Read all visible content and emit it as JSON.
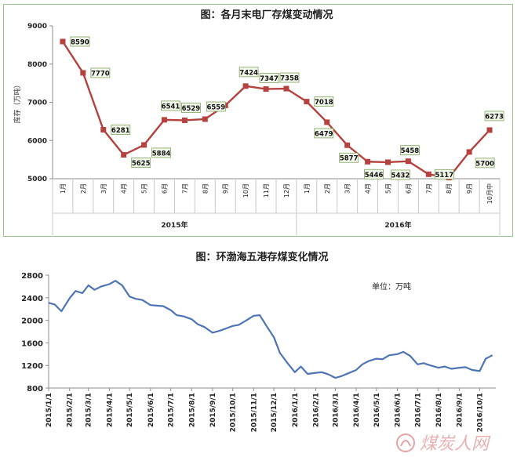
{
  "chart_data": [
    {
      "type": "line",
      "title": "图：各月末电厂存煤变动情况",
      "ylabel": "库存（万吨）",
      "ylim": [
        5000,
        9000
      ],
      "yticks": [
        5000,
        6000,
        7000,
        8000,
        9000
      ],
      "grid": false,
      "categories": [
        "1月",
        "2月",
        "3月",
        "4月",
        "5月",
        "6月",
        "7月",
        "8月",
        "9月",
        "10月",
        "11月",
        "12月",
        "1月",
        "2月",
        "3月",
        "4月",
        "5月",
        "6月",
        "7月",
        "8月",
        "9月",
        "10月中"
      ],
      "groups": [
        {
          "label": "2015年",
          "count": 12
        },
        {
          "label": "2016年",
          "count": 10
        }
      ],
      "series": [
        {
          "values": [
            8590,
            7770,
            6281,
            5625,
            5884,
            6541,
            6529,
            6559,
            6919,
            7424,
            7347,
            7358,
            7018,
            6479,
            5877,
            5446,
            5432,
            5458,
            5117,
            5030,
            5700,
            6273
          ],
          "labels": [
            "8590",
            "7770",
            "6281",
            "5625",
            "5884",
            "6541",
            "6529",
            "6559",
            "",
            "7424",
            "7347",
            "7358",
            "7018",
            "6479",
            "5877",
            "5446",
            "5432",
            "5458",
            "5117",
            "",
            "5700",
            "6273"
          ],
          "color": "#b5423f"
        }
      ]
    },
    {
      "type": "line",
      "title": "图：环渤海五港存煤变化情况",
      "annotation": "单位：万吨",
      "ylim": [
        800,
        2800
      ],
      "yticks": [
        800,
        1200,
        1600,
        2000,
        2400,
        2800
      ],
      "grid": false,
      "xticks": [
        "2015/1/1",
        "2015/2/1",
        "2015/3/1",
        "2015/4/1",
        "2015/5/1",
        "2015/6/1",
        "2015/7/1",
        "2015/8/1",
        "2015/9/1",
        "2015/10/1",
        "2015/11/1",
        "2015/12/1",
        "2016/1/1",
        "2016/2/1",
        "2016/3/1",
        "2016/4/1",
        "2016/5/1",
        "2016/6/1",
        "2016/7/1",
        "2016/8/1",
        "2016/9/1",
        "2016/10/1"
      ],
      "series": [
        {
          "color": "#4f74b3",
          "x": [
            "2015/1/1",
            "2015/1/10",
            "2015/1/20",
            "2015/2/1",
            "2015/2/10",
            "2015/2/20",
            "2015/3/1",
            "2015/3/10",
            "2015/3/20",
            "2015/4/1",
            "2015/4/10",
            "2015/4/20",
            "2015/5/1",
            "2015/5/10",
            "2015/5/20",
            "2015/6/1",
            "2015/6/10",
            "2015/6/20",
            "2015/7/1",
            "2015/7/10",
            "2015/7/20",
            "2015/8/1",
            "2015/8/10",
            "2015/8/20",
            "2015/9/1",
            "2015/9/10",
            "2015/9/20",
            "2015/10/1",
            "2015/10/10",
            "2015/10/20",
            "2015/11/1",
            "2015/11/10",
            "2015/11/20",
            "2015/12/1",
            "2015/12/10",
            "2015/12/20",
            "2016/1/1",
            "2016/1/10",
            "2016/1/20",
            "2016/2/1",
            "2016/2/10",
            "2016/2/20",
            "2016/3/1",
            "2016/3/10",
            "2016/3/20",
            "2016/4/1",
            "2016/4/10",
            "2016/4/20",
            "2016/5/1",
            "2016/5/10",
            "2016/5/20",
            "2016/6/1",
            "2016/6/10",
            "2016/6/20",
            "2016/7/1",
            "2016/7/10",
            "2016/7/20",
            "2016/8/1",
            "2016/8/10",
            "2016/8/20",
            "2016/9/1",
            "2016/9/10",
            "2016/9/20",
            "2016/10/1",
            "2016/10/10",
            "2016/10/20"
          ],
          "y": [
            2310,
            2280,
            2160,
            2390,
            2520,
            2480,
            2620,
            2540,
            2600,
            2640,
            2700,
            2620,
            2420,
            2380,
            2360,
            2270,
            2260,
            2250,
            2180,
            2090,
            2070,
            2020,
            1930,
            1880,
            1780,
            1810,
            1850,
            1900,
            1920,
            1990,
            2080,
            2090,
            1900,
            1700,
            1420,
            1260,
            1080,
            1180,
            1050,
            1070,
            1080,
            1040,
            980,
            1010,
            1060,
            1120,
            1220,
            1280,
            1320,
            1310,
            1380,
            1400,
            1440,
            1370,
            1220,
            1240,
            1200,
            1160,
            1180,
            1140,
            1160,
            1170,
            1120,
            1100,
            1320,
            1380
          ]
        }
      ]
    }
  ],
  "watermark": "煤炭人网"
}
